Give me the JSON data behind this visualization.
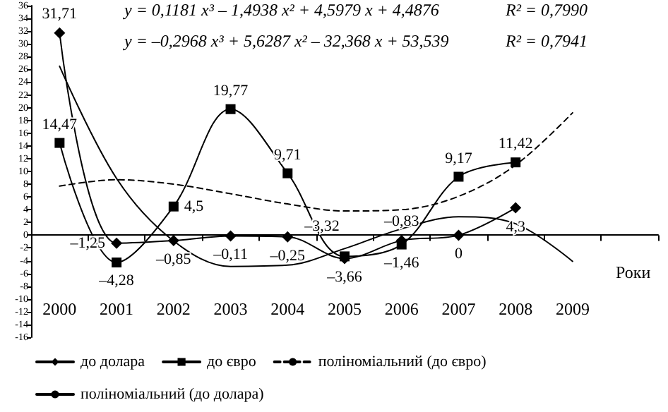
{
  "chart_data": {
    "type": "line",
    "xlabel": "Роки",
    "categories": [
      "2000",
      "2001",
      "2002",
      "2003",
      "2004",
      "2005",
      "2006",
      "2007",
      "2008",
      "2009",
      null
    ],
    "ylim": [
      -16,
      36
    ],
    "yticks": [
      -16,
      -14,
      -12,
      -10,
      -8,
      -6,
      -4,
      -2,
      0,
      2,
      4,
      6,
      8,
      10,
      12,
      14,
      16,
      18,
      20,
      22,
      24,
      26,
      28,
      30,
      32,
      34,
      36
    ],
    "legend": "bottom",
    "series": [
      {
        "name": "до долара",
        "color": "#000000",
        "marker": "diamond",
        "line_style": "solid",
        "values": [
          31.71,
          -1.25,
          -0.85,
          -0.11,
          -0.25,
          -3.66,
          -0.83,
          0,
          4.3,
          null,
          null
        ],
        "value_labels": [
          "31,71",
          "–1,25",
          "–0,85",
          "–0,11",
          "–0,25",
          "–3,66",
          "–0,83",
          "0",
          "4,3",
          null,
          null
        ]
      },
      {
        "name": "до євро",
        "color": "#000000",
        "marker": "square",
        "line_style": "solid",
        "values": [
          14.47,
          -4.28,
          4.5,
          19.77,
          9.71,
          -3.32,
          -1.46,
          9.17,
          11.42,
          null,
          null
        ],
        "value_labels": [
          "14,47",
          "–4,28",
          "4,5",
          "19,77",
          "9,71",
          "–3,32",
          "–1,46",
          "9,17",
          "11,42",
          null,
          null
        ]
      },
      {
        "name": "поліноміальний (до євро)",
        "type": "line",
        "color": "#000000",
        "marker": "none",
        "line_style": "dashed",
        "values": [
          7.7,
          8.7,
          8.0,
          6.5,
          4.9,
          3.8,
          4.0,
          6.1,
          11.0,
          19.2,
          null
        ]
      },
      {
        "name": "поліноміальний (до долара)",
        "type": "line",
        "color": "#000000",
        "marker": "none",
        "line_style": "solid",
        "values": [
          26.5,
          8.9,
          -0.9,
          -4.9,
          -4.7,
          -2.1,
          1.0,
          2.9,
          1.8,
          -4.1,
          null
        ]
      }
    ],
    "annotations": [
      "y = 0,1181 x³ – 1,4938 x² + 4,5979 x + 4,4876",
      "R² = 0,7990",
      "y = –0,2968 x³ + 5,6287 x² – 32,368 x + 53,539",
      "R² = 0,7941"
    ]
  }
}
